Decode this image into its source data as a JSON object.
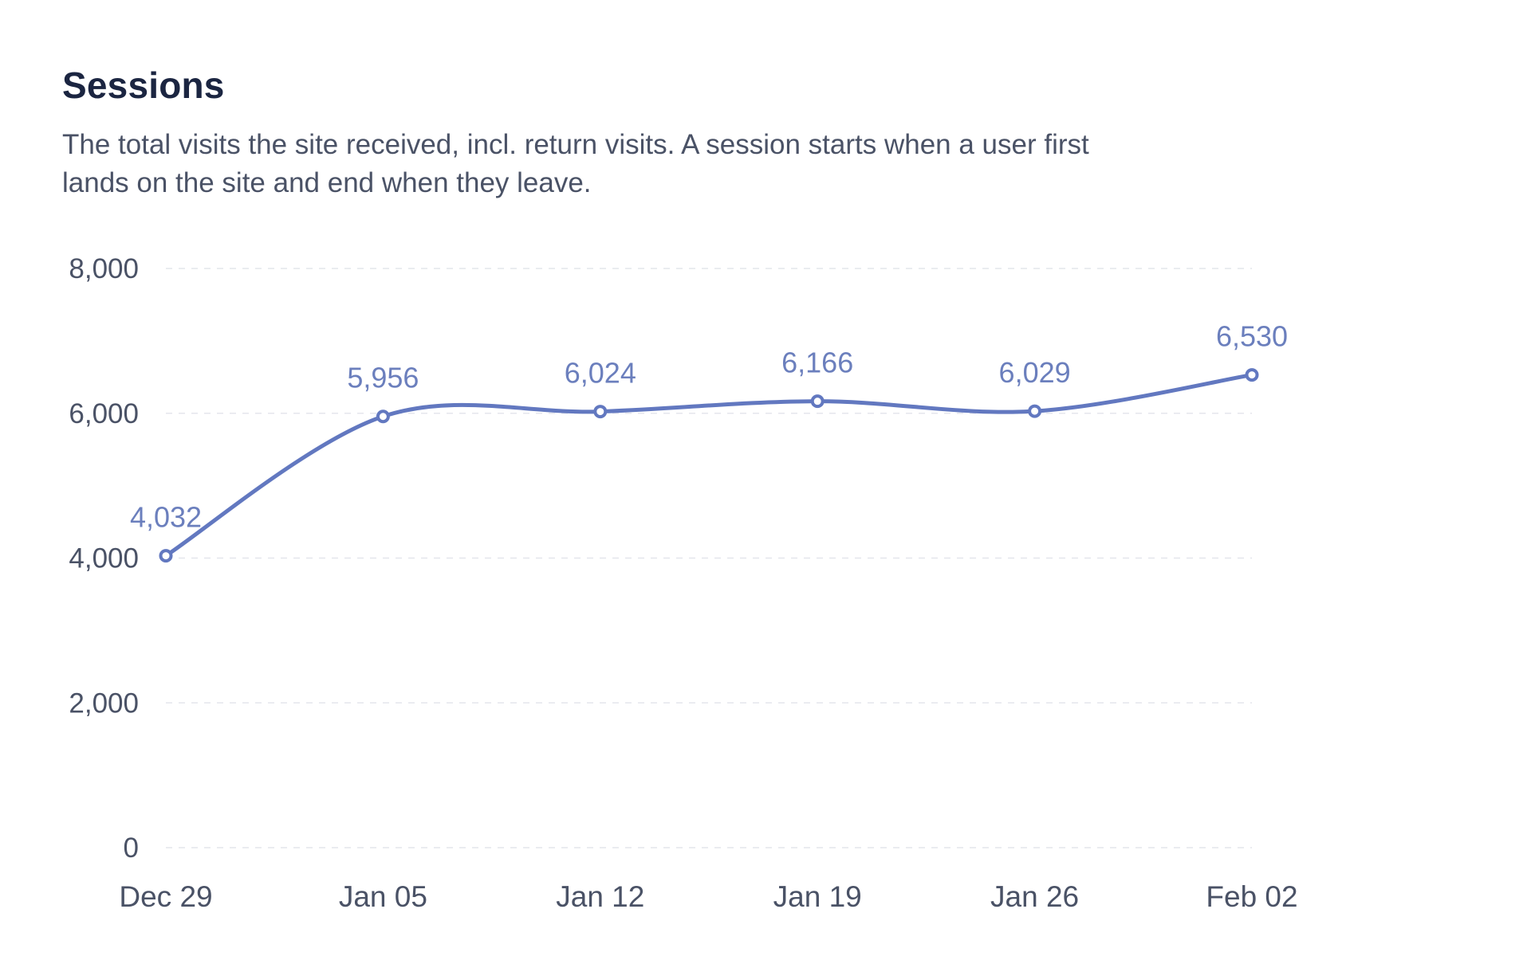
{
  "chart_data": {
    "type": "line",
    "title": "Sessions",
    "subtitle": "The total visits the site received, incl. return visits. A session starts when a user first lands on the site and end when they leave.",
    "categories": [
      "Dec 29",
      "Jan 05",
      "Jan 12",
      "Jan 19",
      "Jan 26",
      "Feb 02"
    ],
    "series": [
      {
        "name": "Sessions",
        "values": [
          4032,
          5956,
          6024,
          6166,
          6029,
          6530
        ],
        "labels": [
          "4,032",
          "5,956",
          "6,024",
          "6,166",
          "6,029",
          "6,530"
        ]
      }
    ],
    "yticks": [
      0,
      2000,
      4000,
      6000,
      8000
    ],
    "ytick_labels": [
      "0",
      "2,000",
      "4,000",
      "6,000",
      "8,000"
    ],
    "ylim": [
      0,
      8000
    ],
    "grid": true,
    "line_color": "#6278c0",
    "xlabel": "",
    "ylabel": ""
  }
}
